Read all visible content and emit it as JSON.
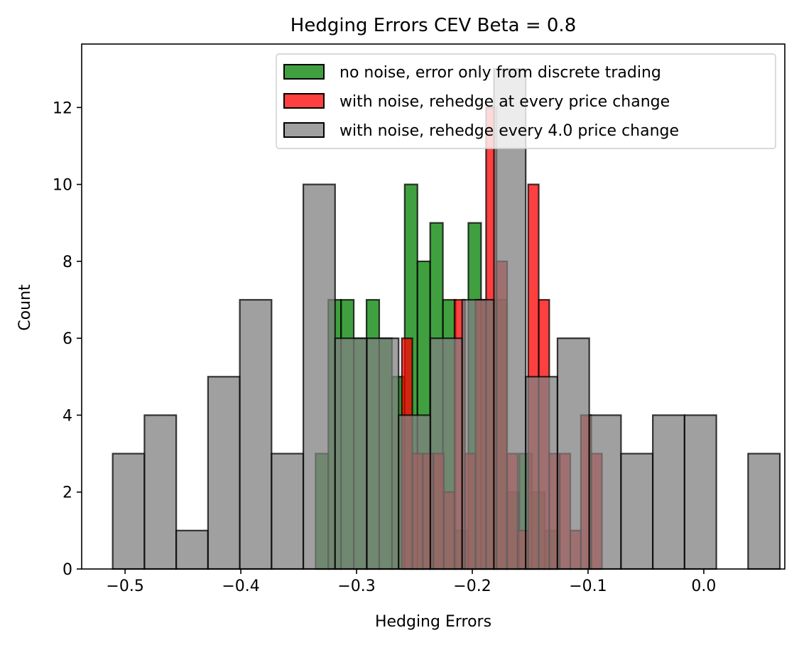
{
  "chart_data": {
    "type": "histogram",
    "title": "Hedging Errors CEV Beta = 0.8",
    "xlabel": "Hedging Errors",
    "ylabel": "Count",
    "xlim": [
      -0.5375,
      0.07
    ],
    "ylim": [
      0,
      13.65
    ],
    "xticks": [
      -0.5,
      -0.4,
      -0.3,
      -0.2,
      -0.1,
      0.0
    ],
    "xtick_labels": [
      "−0.5",
      "−0.4",
      "−0.3",
      "−0.2",
      "−0.1",
      "0.0"
    ],
    "yticks": [
      0,
      2,
      4,
      6,
      8,
      10,
      12
    ],
    "ytick_labels": [
      "0",
      "2",
      "4",
      "6",
      "8",
      "10",
      "12"
    ],
    "grid": false,
    "legend_position": "top-right",
    "series": [
      {
        "name": "no noise, error only from discrete trading",
        "color": "#008000",
        "alpha": 0.75,
        "bin_start": -0.3354,
        "bin_width": 0.011,
        "counts": [
          3,
          7,
          7,
          6,
          7,
          6,
          5,
          10,
          8,
          9,
          7,
          1,
          9,
          7,
          7,
          2,
          3,
          2,
          1
        ]
      },
      {
        "name": "with noise, rehedge at every price change",
        "color": "#ff0000",
        "alpha": 0.75,
        "bin_start": -0.2609,
        "bin_width": 0.0091,
        "counts": [
          6,
          3,
          3,
          3,
          2,
          7,
          3,
          7,
          12,
          8,
          3,
          1,
          10,
          7,
          3,
          3,
          1,
          4,
          3
        ]
      },
      {
        "name": "with noise, rehedge every 4.0 price change",
        "color": "#808080",
        "alpha": 0.75,
        "bin_start": -0.5107,
        "bin_width": 0.02745,
        "counts": [
          3,
          4,
          1,
          5,
          7,
          3,
          10,
          6,
          6,
          4,
          6,
          7,
          13,
          5,
          6,
          4,
          3,
          4,
          4,
          0,
          3
        ]
      }
    ]
  }
}
